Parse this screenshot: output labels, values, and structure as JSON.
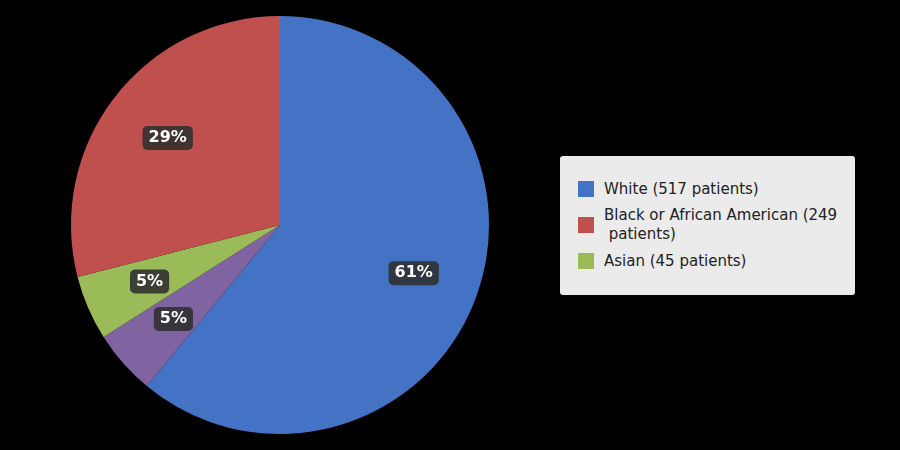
{
  "chart_data": {
    "type": "pie",
    "values": [
      61,
      5,
      5,
      29
    ],
    "value_labels": [
      "61%",
      "5%",
      "5%",
      "29%"
    ],
    "colors": [
      "#4472C4",
      "#8064A2",
      "#9BBB59",
      "#C0504D"
    ],
    "data_labels": true,
    "legend": "right",
    "legend_entries": [
      {
        "name": "White (517 patients)",
        "color": "#4472C4"
      },
      {
        "name": "Black or African American (249\n patients)",
        "color": "#C0504D"
      },
      {
        "name": "Asian (45 patients)",
        "color": "#9BBB59"
      }
    ]
  }
}
